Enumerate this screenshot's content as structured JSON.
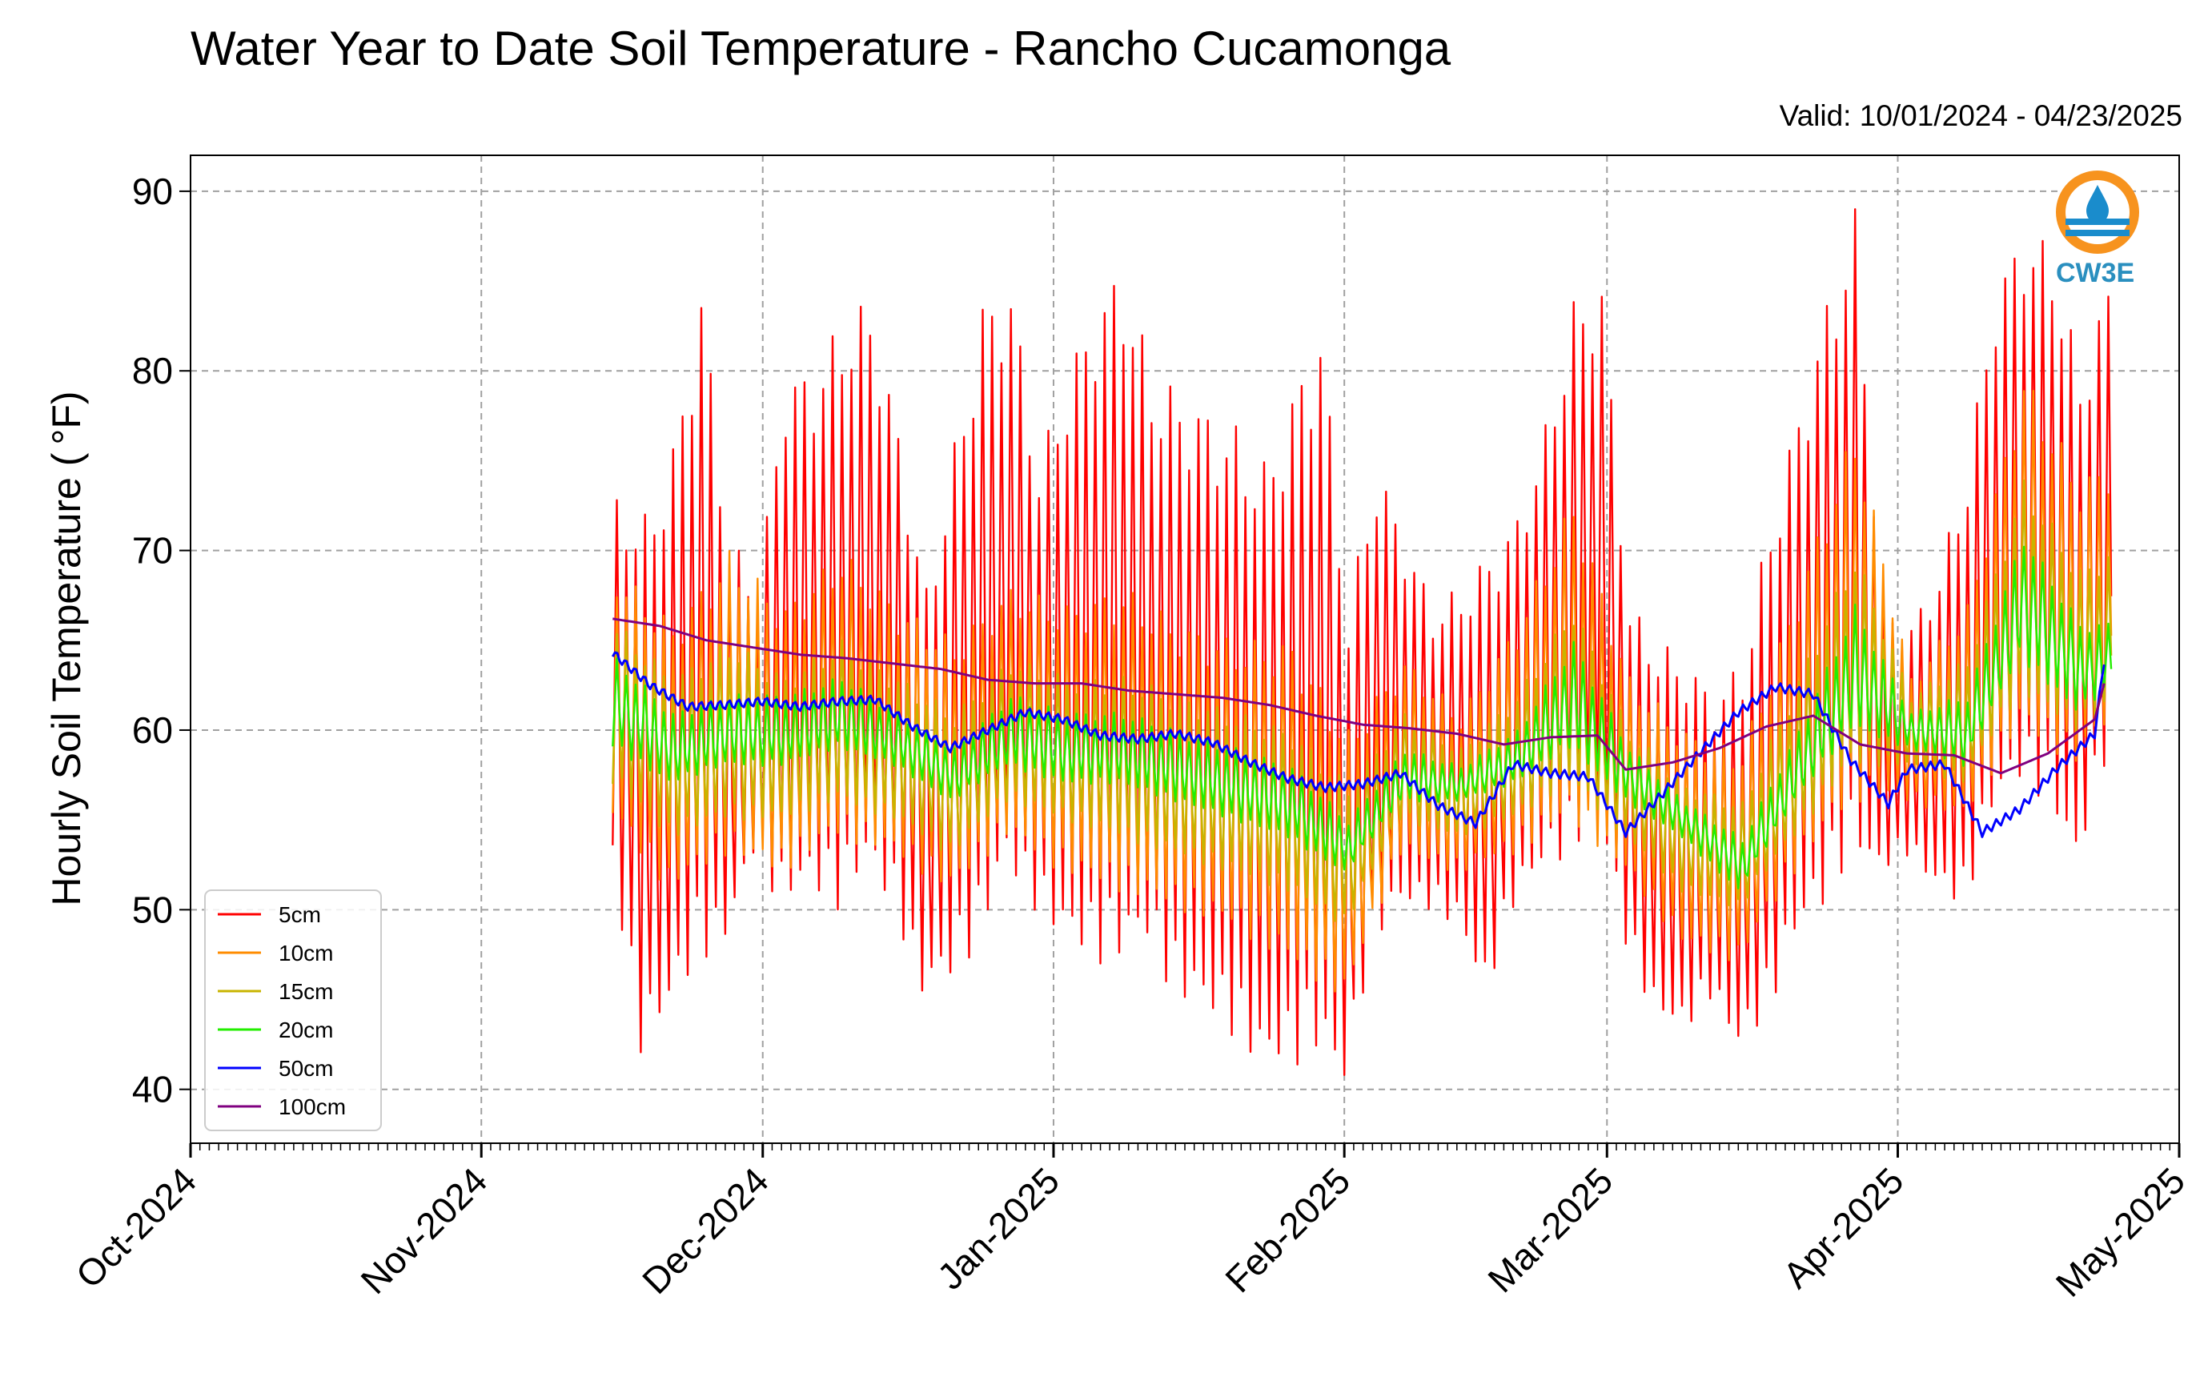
{
  "chart_data": {
    "type": "line",
    "title": "Water Year to Date Soil Temperature - Rancho Cucamonga",
    "subtitle": "Valid: 10/01/2024 - 04/23/2025",
    "ylabel": "Hourly Soil Temperature ($^\\circ$F)",
    "ylabel_display": "Hourly Soil Temperature ( °F)",
    "xlabel": "",
    "x_start": "2024-10-01",
    "x_end": "2025-05-01",
    "xlim": [
      "2024-10-01",
      "2025-05-01"
    ],
    "ylim": [
      37,
      92
    ],
    "y_ticks": [
      40,
      50,
      60,
      70,
      80,
      90
    ],
    "x_ticks": [
      {
        "date": "2024-10-01",
        "label": "Oct-2024"
      },
      {
        "date": "2024-11-01",
        "label": "Nov-2024"
      },
      {
        "date": "2024-12-01",
        "label": "Dec-2024"
      },
      {
        "date": "2025-01-01",
        "label": "Jan-2025"
      },
      {
        "date": "2025-02-01",
        "label": "Feb-2025"
      },
      {
        "date": "2025-03-01",
        "label": "Mar-2025"
      },
      {
        "date": "2025-04-01",
        "label": "Apr-2025"
      },
      {
        "date": "2025-05-01",
        "label": "May-2025"
      }
    ],
    "grid": true,
    "legend_position": "bottom-left",
    "logo_text": "CW3E",
    "daily_range_note": "5cm-20cm series swing daily between daily_min and daily_max",
    "series": [
      {
        "name": "5cm",
        "color": "#ff0000",
        "daily": [
          [
            "2024-11-15",
            52,
            73
          ],
          [
            "2024-11-18",
            42,
            72
          ],
          [
            "2024-11-21",
            44,
            76
          ],
          [
            "2024-11-24",
            47,
            85
          ],
          [
            "2024-11-27",
            48,
            71
          ],
          [
            "2024-11-30",
            53,
            68
          ],
          [
            "2024-12-03",
            50,
            80
          ],
          [
            "2024-12-06",
            51,
            80
          ],
          [
            "2024-12-09",
            50,
            83
          ],
          [
            "2024-12-12",
            52,
            84
          ],
          [
            "2024-12-15",
            50,
            77
          ],
          [
            "2024-12-18",
            45,
            68
          ],
          [
            "2024-12-21",
            46,
            76
          ],
          [
            "2024-12-24",
            48,
            84
          ],
          [
            "2024-12-27",
            52,
            85
          ],
          [
            "2024-12-30",
            50,
            75
          ],
          [
            "2025-01-02",
            48,
            80
          ],
          [
            "2025-01-05",
            47,
            84
          ],
          [
            "2025-01-08",
            47,
            86
          ],
          [
            "2025-01-11",
            48,
            80
          ],
          [
            "2025-01-14",
            45,
            79
          ],
          [
            "2025-01-17",
            44,
            78
          ],
          [
            "2025-01-20",
            43,
            77
          ],
          [
            "2025-01-23",
            41,
            75
          ],
          [
            "2025-01-26",
            41,
            79
          ],
          [
            "2025-01-29",
            42,
            83
          ],
          [
            "2025-02-01",
            40,
            67
          ],
          [
            "2025-02-04",
            48,
            75
          ],
          [
            "2025-02-07",
            50,
            71
          ],
          [
            "2025-02-10",
            50,
            67
          ],
          [
            "2025-02-13",
            49,
            68
          ],
          [
            "2025-02-16",
            45,
            70
          ],
          [
            "2025-02-19",
            50,
            72
          ],
          [
            "2025-02-22",
            52,
            77
          ],
          [
            "2025-02-25",
            53,
            84
          ],
          [
            "2025-02-28",
            55,
            85
          ],
          [
            "2025-03-03",
            48,
            67
          ],
          [
            "2025-03-06",
            44,
            65
          ],
          [
            "2025-03-09",
            43,
            64
          ],
          [
            "2025-03-12",
            45,
            62
          ],
          [
            "2025-03-15",
            42,
            64
          ],
          [
            "2025-03-18",
            44,
            72
          ],
          [
            "2025-03-21",
            48,
            78
          ],
          [
            "2025-03-24",
            50,
            84
          ],
          [
            "2025-03-27",
            53,
            89
          ],
          [
            "2025-03-30",
            52,
            67
          ],
          [
            "2025-04-02",
            53,
            66
          ],
          [
            "2025-04-05",
            51,
            69
          ],
          [
            "2025-04-08",
            50,
            75
          ],
          [
            "2025-04-11",
            55,
            85
          ],
          [
            "2025-04-14",
            57,
            88
          ],
          [
            "2025-04-17",
            56,
            87
          ],
          [
            "2025-04-20",
            52,
            80
          ],
          [
            "2025-04-23",
            58,
            85
          ]
        ]
      },
      {
        "name": "10cm",
        "color": "#ff8c00",
        "daily": [
          [
            "2024-11-15",
            55,
            69
          ],
          [
            "2024-11-21",
            51,
            66
          ],
          [
            "2024-11-27",
            53,
            70
          ],
          [
            "2024-12-03",
            52,
            67
          ],
          [
            "2024-12-09",
            54,
            70
          ],
          [
            "2024-12-15",
            53,
            67
          ],
          [
            "2024-12-21",
            51,
            65
          ],
          [
            "2024-12-27",
            54,
            68
          ],
          [
            "2025-01-02",
            52,
            67
          ],
          [
            "2025-01-08",
            51,
            68
          ],
          [
            "2025-01-14",
            50,
            66
          ],
          [
            "2025-01-20",
            49,
            65
          ],
          [
            "2025-01-26",
            47,
            65
          ],
          [
            "2025-02-01",
            45,
            60
          ],
          [
            "2025-02-07",
            53,
            64
          ],
          [
            "2025-02-13",
            52,
            61
          ],
          [
            "2025-02-19",
            53,
            66
          ],
          [
            "2025-02-25",
            55,
            73
          ],
          [
            "2025-03-03",
            52,
            63
          ],
          [
            "2025-03-09",
            48,
            60
          ],
          [
            "2025-03-15",
            47,
            59
          ],
          [
            "2025-03-21",
            52,
            68
          ],
          [
            "2025-03-27",
            56,
            77
          ],
          [
            "2025-04-02",
            56,
            63
          ],
          [
            "2025-04-08",
            55,
            67
          ],
          [
            "2025-04-14",
            60,
            80
          ],
          [
            "2025-04-20",
            58,
            74
          ],
          [
            "2025-04-23",
            60,
            75
          ]
        ]
      },
      {
        "name": "15cm",
        "color": "#c8b400",
        "daily": [
          [
            "2024-11-15",
            57,
            66
          ],
          [
            "2024-11-21",
            54,
            63
          ],
          [
            "2024-11-27",
            55,
            65
          ],
          [
            "2024-12-03",
            55,
            63
          ],
          [
            "2024-12-09",
            56,
            65
          ],
          [
            "2024-12-15",
            55,
            63
          ],
          [
            "2024-12-21",
            53,
            61
          ],
          [
            "2024-12-27",
            56,
            64
          ],
          [
            "2025-01-02",
            55,
            63
          ],
          [
            "2025-01-08",
            54,
            63
          ],
          [
            "2025-01-14",
            53,
            62
          ],
          [
            "2025-01-20",
            52,
            61
          ],
          [
            "2025-01-26",
            51,
            60
          ],
          [
            "2025-02-01",
            49,
            57
          ],
          [
            "2025-02-07",
            55,
            61
          ],
          [
            "2025-02-13",
            54,
            59
          ],
          [
            "2025-02-19",
            55,
            62
          ],
          [
            "2025-02-25",
            57,
            67
          ],
          [
            "2025-03-03",
            54,
            60
          ],
          [
            "2025-03-09",
            51,
            57
          ],
          [
            "2025-03-15",
            50,
            56
          ],
          [
            "2025-03-21",
            54,
            63
          ],
          [
            "2025-03-27",
            58,
            70
          ],
          [
            "2025-04-02",
            58,
            62
          ],
          [
            "2025-04-08",
            57,
            64
          ],
          [
            "2025-04-14",
            62,
            74
          ],
          [
            "2025-04-20",
            60,
            69
          ],
          [
            "2025-04-23",
            61,
            70
          ]
        ]
      },
      {
        "name": "20cm",
        "color": "#22ee00",
        "daily": [
          [
            "2024-11-15",
            59,
            64
          ],
          [
            "2024-11-21",
            57,
            61
          ],
          [
            "2024-11-27",
            58,
            62
          ],
          [
            "2024-12-03",
            58,
            62
          ],
          [
            "2024-12-09",
            59,
            63
          ],
          [
            "2024-12-15",
            58,
            61
          ],
          [
            "2024-12-21",
            56,
            59
          ],
          [
            "2024-12-27",
            58,
            62
          ],
          [
            "2025-01-02",
            57,
            61
          ],
          [
            "2025-01-08",
            57,
            61
          ],
          [
            "2025-01-14",
            56,
            60
          ],
          [
            "2025-01-20",
            55,
            59
          ],
          [
            "2025-01-26",
            54,
            58
          ],
          [
            "2025-02-01",
            52,
            55
          ],
          [
            "2025-02-07",
            56,
            59
          ],
          [
            "2025-02-13",
            56,
            58
          ],
          [
            "2025-02-19",
            57,
            60
          ],
          [
            "2025-02-25",
            59,
            65
          ],
          [
            "2025-03-03",
            56,
            59
          ],
          [
            "2025-03-09",
            54,
            56
          ],
          [
            "2025-03-15",
            51,
            54
          ],
          [
            "2025-03-21",
            56,
            60
          ],
          [
            "2025-03-27",
            60,
            67
          ],
          [
            "2025-04-02",
            59,
            61
          ],
          [
            "2025-04-08",
            58,
            62
          ],
          [
            "2025-04-14",
            64,
            71
          ],
          [
            "2025-04-20",
            61,
            66
          ],
          [
            "2025-04-23",
            62,
            66
          ]
        ]
      },
      {
        "name": "50cm",
        "color": "#0000ff",
        "points": [
          [
            "2024-11-15",
            64.3
          ],
          [
            "2024-11-19",
            62.5
          ],
          [
            "2024-11-23",
            61.3
          ],
          [
            "2024-11-27",
            61.4
          ],
          [
            "2024-12-01",
            61.6
          ],
          [
            "2024-12-05",
            61.3
          ],
          [
            "2024-12-09",
            61.6
          ],
          [
            "2024-12-13",
            61.7
          ],
          [
            "2024-12-17",
            60.2
          ],
          [
            "2024-12-21",
            59.0
          ],
          [
            "2024-12-25",
            60.0
          ],
          [
            "2024-12-29",
            61.0
          ],
          [
            "2025-01-02",
            60.6
          ],
          [
            "2025-01-06",
            59.7
          ],
          [
            "2025-01-10",
            59.5
          ],
          [
            "2025-01-14",
            59.8
          ],
          [
            "2025-01-18",
            59.3
          ],
          [
            "2025-01-22",
            58.2
          ],
          [
            "2025-01-26",
            57.3
          ],
          [
            "2025-01-30",
            56.8
          ],
          [
            "2025-02-03",
            57.0
          ],
          [
            "2025-02-07",
            57.6
          ],
          [
            "2025-02-11",
            55.8
          ],
          [
            "2025-02-15",
            54.8
          ],
          [
            "2025-02-19",
            58.1
          ],
          [
            "2025-02-23",
            57.6
          ],
          [
            "2025-02-27",
            57.4
          ],
          [
            "2025-03-03",
            54.3
          ],
          [
            "2025-03-07",
            56.5
          ],
          [
            "2025-03-11",
            58.8
          ],
          [
            "2025-03-15",
            61.0
          ],
          [
            "2025-03-19",
            62.4
          ],
          [
            "2025-03-23",
            62.0
          ],
          [
            "2025-03-27",
            58.3
          ],
          [
            "2025-03-31",
            55.9
          ],
          [
            "2025-04-02",
            57.8
          ],
          [
            "2025-04-06",
            58.1
          ],
          [
            "2025-04-10",
            54.3
          ],
          [
            "2025-04-14",
            55.6
          ],
          [
            "2025-04-18",
            57.9
          ],
          [
            "2025-04-22",
            59.8
          ],
          [
            "2025-04-23",
            63.9
          ]
        ]
      },
      {
        "name": "100cm",
        "color": "#800080",
        "points": [
          [
            "2024-11-15",
            66.2
          ],
          [
            "2024-11-20",
            65.8
          ],
          [
            "2024-11-25",
            65.0
          ],
          [
            "2024-11-30",
            64.6
          ],
          [
            "2024-12-05",
            64.2
          ],
          [
            "2024-12-10",
            64.0
          ],
          [
            "2024-12-15",
            63.7
          ],
          [
            "2024-12-20",
            63.4
          ],
          [
            "2024-12-25",
            62.8
          ],
          [
            "2024-12-30",
            62.6
          ],
          [
            "2025-01-04",
            62.6
          ],
          [
            "2025-01-09",
            62.2
          ],
          [
            "2025-01-14",
            62.0
          ],
          [
            "2025-01-19",
            61.8
          ],
          [
            "2025-01-24",
            61.4
          ],
          [
            "2025-01-29",
            60.8
          ],
          [
            "2025-02-03",
            60.3
          ],
          [
            "2025-02-08",
            60.1
          ],
          [
            "2025-02-13",
            59.8
          ],
          [
            "2025-02-18",
            59.2
          ],
          [
            "2025-02-23",
            59.6
          ],
          [
            "2025-02-28",
            59.7
          ],
          [
            "2025-03-03",
            57.8
          ],
          [
            "2025-03-08",
            58.2
          ],
          [
            "2025-03-13",
            59.0
          ],
          [
            "2025-03-18",
            60.2
          ],
          [
            "2025-03-23",
            60.8
          ],
          [
            "2025-03-28",
            59.2
          ],
          [
            "2025-04-02",
            58.7
          ],
          [
            "2025-04-07",
            58.6
          ],
          [
            "2025-04-12",
            57.6
          ],
          [
            "2025-04-17",
            58.7
          ],
          [
            "2025-04-22",
            60.6
          ],
          [
            "2025-04-23",
            62.6
          ]
        ]
      }
    ]
  }
}
